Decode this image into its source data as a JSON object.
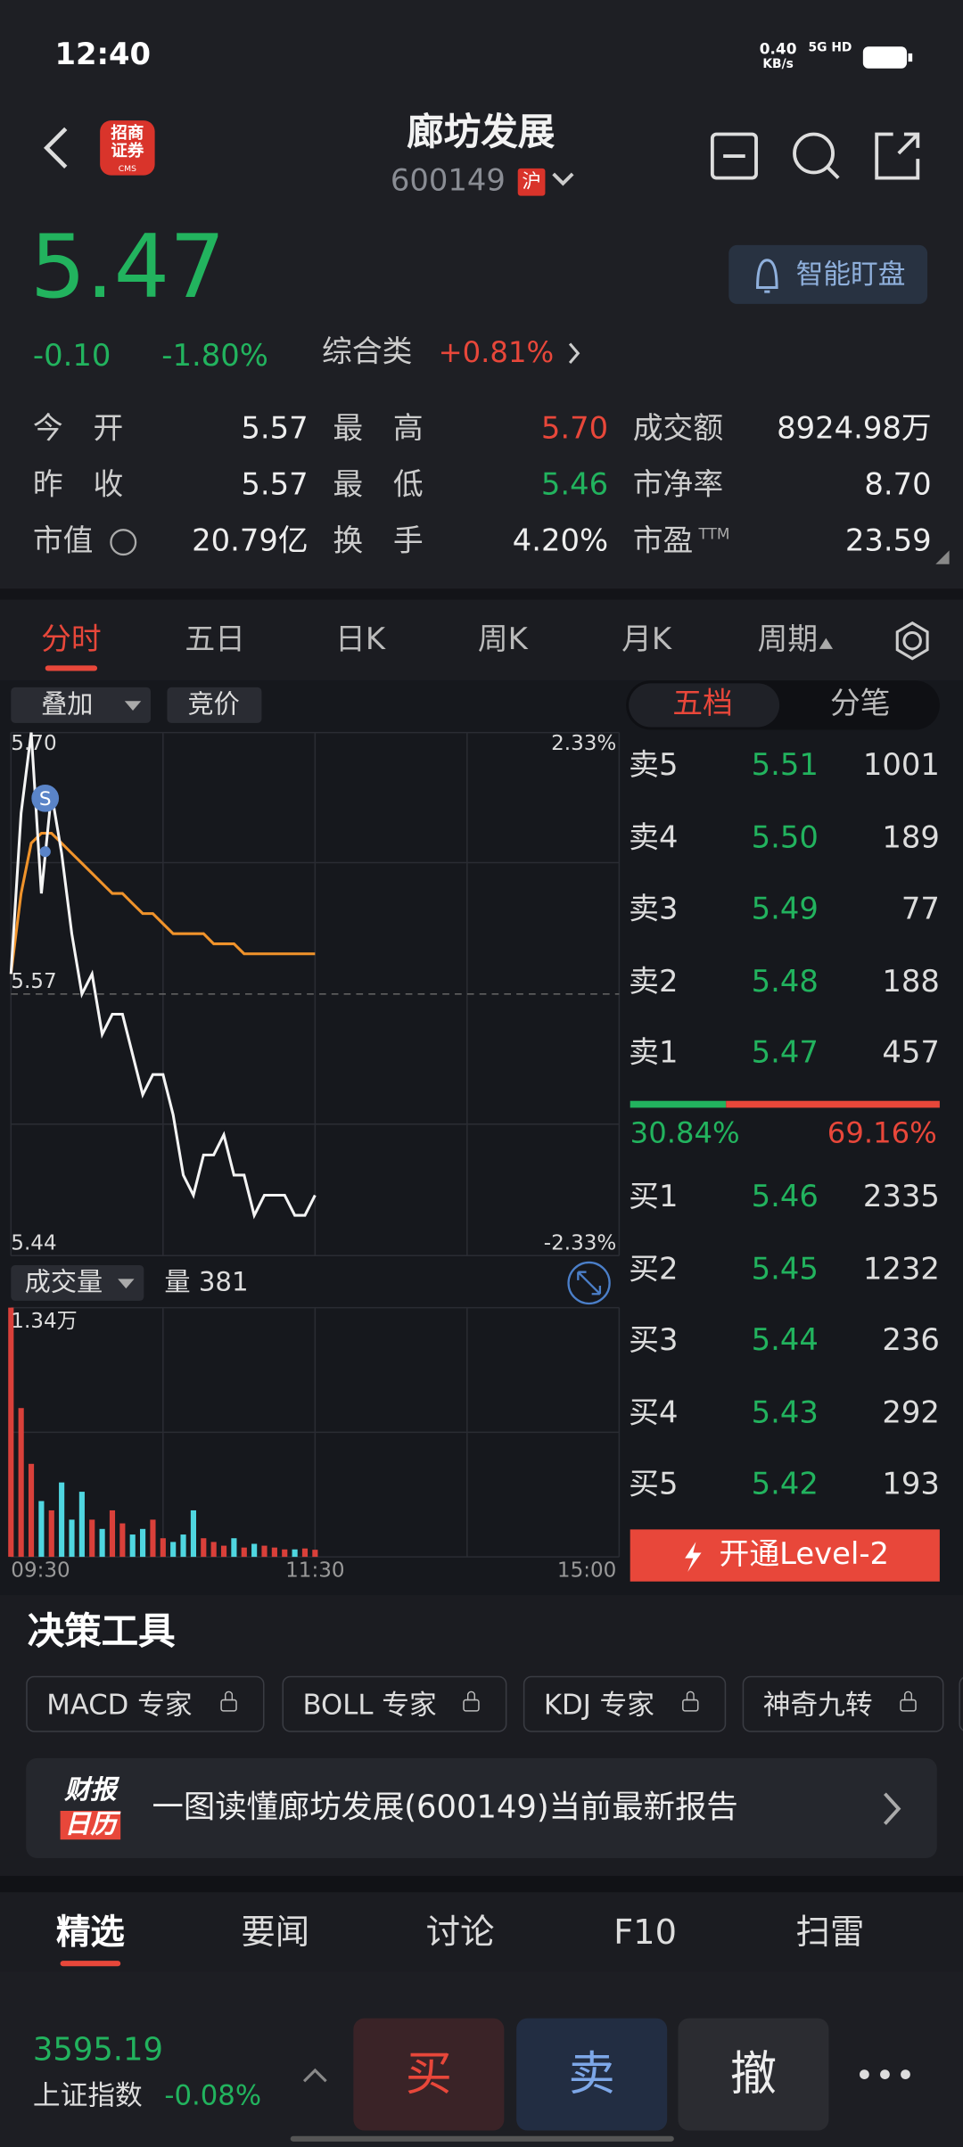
{
  "status": {
    "time": "12:40",
    "speed": "0.40",
    "speed_unit": "KB/s",
    "network": "5G HD"
  },
  "header": {
    "logo": "招商证券",
    "logo_sub": "CMS",
    "title": "廊坊发展",
    "code": "600149",
    "exchange": "沪"
  },
  "quote": {
    "price": "5.47",
    "change": "-0.10",
    "change_pct": "-1.80%",
    "sector": "综合类",
    "sector_pct": "+0.81%",
    "alert_button": "智能盯盘"
  },
  "stats": [
    [
      {
        "label": "今　开",
        "value": "5.57"
      },
      {
        "label": "最　高",
        "value": "5.70",
        "color": "#e8473a"
      },
      {
        "label": "成交额",
        "value": "8924.98万"
      }
    ],
    [
      {
        "label": "昨　收",
        "value": "5.57"
      },
      {
        "label": "最　低",
        "value": "5.46",
        "color": "#22b35e"
      },
      {
        "label": "市净率",
        "value": "8.70"
      }
    ],
    [
      {
        "label": "市值",
        "value": "20.79亿"
      },
      {
        "label": "换　手",
        "value": "4.20%"
      },
      {
        "label": "市盈",
        "label_sup": "TTM",
        "value": "23.59"
      }
    ]
  ],
  "tabs": {
    "items": [
      "分时",
      "五日",
      "日K",
      "周K",
      "月K",
      "周期"
    ],
    "active": 0
  },
  "chart": {
    "overlay": "叠加",
    "auction": "竞价",
    "price_high": "5.70",
    "pct_high": "2.33%",
    "price_mid": "5.57",
    "price_low": "5.44",
    "pct_low": "-2.33%",
    "signal": "S",
    "ylim": [
      5.44,
      5.7
    ],
    "price": [
      5.58,
      5.66,
      5.7,
      5.62,
      5.67,
      5.64,
      5.6,
      5.57,
      5.58,
      5.55,
      5.56,
      5.56,
      5.54,
      5.52,
      5.53,
      5.53,
      5.51,
      5.48,
      5.47,
      5.49,
      5.49,
      5.5,
      5.48,
      5.48,
      5.46,
      5.47,
      5.47,
      5.47,
      5.46,
      5.46,
      5.47
    ],
    "avg": [
      5.58,
      5.62,
      5.645,
      5.65,
      5.65,
      5.645,
      5.64,
      5.635,
      5.63,
      5.625,
      5.62,
      5.62,
      5.615,
      5.61,
      5.61,
      5.605,
      5.6,
      5.6,
      5.6,
      5.6,
      5.595,
      5.595,
      5.595,
      5.59,
      5.59,
      5.59,
      5.59,
      5.59,
      5.59,
      5.59,
      5.59
    ],
    "volume_label": "成交量",
    "volume_text": "量 381",
    "volume_max": "1.34万",
    "vlim": [
      0,
      13400
    ],
    "volume": [
      13400,
      8000,
      5000,
      3000,
      2500,
      4000,
      2000,
      3500,
      2000,
      1500,
      2500,
      1800,
      1200,
      1500,
      2000,
      1000,
      800,
      1200,
      2500,
      1000,
      800,
      600,
      1000,
      500,
      700,
      600,
      500,
      400,
      400,
      450,
      381
    ],
    "times": [
      "09:30",
      "11:30",
      "15:00"
    ]
  },
  "orderbook": {
    "tabs": [
      "五档",
      "分笔"
    ],
    "active": 0,
    "asks": [
      {
        "label": "卖5",
        "price": "5.51",
        "volume": "1001"
      },
      {
        "label": "卖4",
        "price": "5.50",
        "volume": "189"
      },
      {
        "label": "卖3",
        "price": "5.49",
        "volume": "77"
      },
      {
        "label": "卖2",
        "price": "5.48",
        "volume": "188"
      },
      {
        "label": "卖1",
        "price": "5.47",
        "volume": "457"
      }
    ],
    "ratio": {
      "values": [
        30.84,
        69.16
      ],
      "value_labels": [
        "30.84%",
        "69.16%"
      ]
    },
    "bids": [
      {
        "label": "买1",
        "price": "5.46",
        "volume": "2335"
      },
      {
        "label": "买2",
        "price": "5.45",
        "volume": "1232"
      },
      {
        "label": "买3",
        "price": "5.44",
        "volume": "236"
      },
      {
        "label": "买4",
        "price": "5.43",
        "volume": "292"
      },
      {
        "label": "买5",
        "price": "5.42",
        "volume": "193"
      }
    ],
    "level2": "开通Level-2"
  },
  "tools": {
    "title": "决策工具",
    "items": [
      "MACD 专家",
      "BOLL 专家",
      "KDJ 专家",
      "神奇九转"
    ],
    "banner_icon": [
      "财报",
      "日历"
    ],
    "banner": "一图读懂廊坊发展(600149)当前最新报告"
  },
  "bottom_tabs": {
    "items": [
      "精选",
      "要闻",
      "讨论",
      "F10",
      "扫雷"
    ],
    "active": 0
  },
  "index": {
    "value": "3595.19",
    "name": "上证指数",
    "change_pct": "-0.08%"
  },
  "actions": [
    "买",
    "卖",
    "撤"
  ]
}
